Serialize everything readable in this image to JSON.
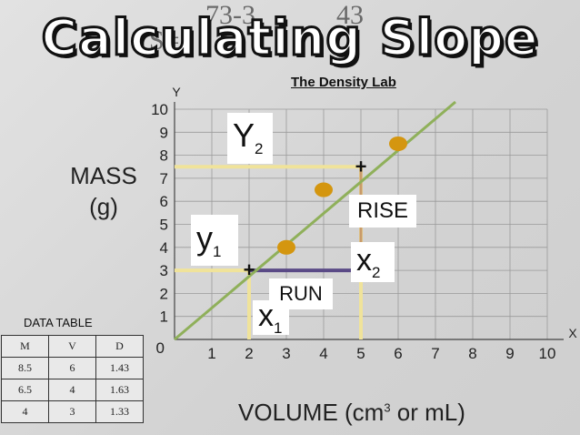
{
  "slide": {
    "title": "Calculating Slope",
    "formula_top_left": "73-3",
    "formula_top_right": "43",
    "formula_bottom": "S=",
    "lab_title": "The Density Lab"
  },
  "callouts": {
    "y2_main": "Y",
    "y2_sub": "2",
    "y1_main": "y",
    "y1_sub": "1",
    "x2_main": "x",
    "x2_sub": "2",
    "x1_main": "x",
    "x1_sub": "1",
    "rise": "RISE",
    "run": "RUN"
  },
  "data_table": {
    "title": "DATA TABLE",
    "headers": [
      "M",
      "V",
      "D"
    ],
    "rows": [
      [
        "8.5",
        "6",
        "1.43"
      ],
      [
        "6.5",
        "4",
        "1.63"
      ],
      [
        "4",
        "3",
        "1.33"
      ]
    ]
  },
  "chart_data": {
    "type": "scatter",
    "xlabel_main": "VOLUME (cm",
    "xlabel_sup": "3",
    "xlabel_tail": " or mL)",
    "ylabel_line1": "MASS",
    "ylabel_line2": "(g)",
    "x_axis_letter": "X",
    "y_axis_letter": "Y",
    "origin_label": "0",
    "xlim": [
      0,
      10
    ],
    "ylim": [
      0,
      10
    ],
    "x_ticks": [
      "1",
      "2",
      "3",
      "4",
      "5",
      "6",
      "7",
      "8",
      "9",
      "10"
    ],
    "y_ticks": [
      "1",
      "2",
      "3",
      "4",
      "5",
      "6",
      "7",
      "8",
      "9",
      "10"
    ],
    "grid": true,
    "points": [
      {
        "x": 3,
        "y": 4
      },
      {
        "x": 4,
        "y": 6.5
      },
      {
        "x": 6,
        "y": 8.5
      }
    ],
    "best_fit_line": {
      "x1": 0,
      "y1": 0,
      "x2": 7,
      "y2": 10
    },
    "marked_points": [
      {
        "label": "+",
        "x": 2,
        "y": 3
      },
      {
        "label": "+",
        "x": 5,
        "y": 7.5
      }
    ],
    "rise": {
      "x": 5,
      "y_from": 3,
      "y_to": 7.5
    },
    "run": {
      "y": 3,
      "x_from": 2,
      "x_to": 5
    },
    "colors": {
      "point": "#d4960f",
      "line": "#8fb05a",
      "guide": "#f0e39a",
      "rise_line": "#c89a6a",
      "run_line": "#5a4a86",
      "grid": "#9a9a9a"
    }
  }
}
